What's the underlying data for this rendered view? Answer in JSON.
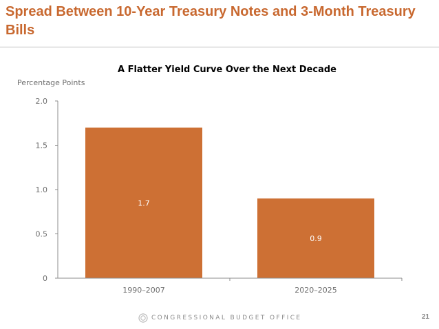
{
  "slide": {
    "title": "Spread Between 10-Year Treasury Notes and 3-Month Treasury Bills",
    "page_number": "21",
    "footer_org": "CONGRESSIONAL BUDGET OFFICE",
    "logo_icon": "cbo-seal-icon"
  },
  "colors": {
    "title": "#c8682f",
    "bar": "#cd7034",
    "axis": "#8c8c8c"
  },
  "chart_data": {
    "type": "bar",
    "title": "A Flatter Yield Curve Over the Next Decade",
    "ylabel": "Percentage Points",
    "xlabel": "",
    "categories": [
      "1990–2007",
      "2020–2025"
    ],
    "values": [
      1.7,
      0.9
    ],
    "value_labels": [
      "1.7",
      "0.9"
    ],
    "ylim": [
      0,
      2.0
    ],
    "yticks": [
      0,
      0.5,
      1.0,
      1.5,
      2.0
    ],
    "ytick_labels": [
      "0",
      "0.5",
      "1.0",
      "1.5",
      "2.0"
    ],
    "grid": false,
    "legend": "none"
  }
}
